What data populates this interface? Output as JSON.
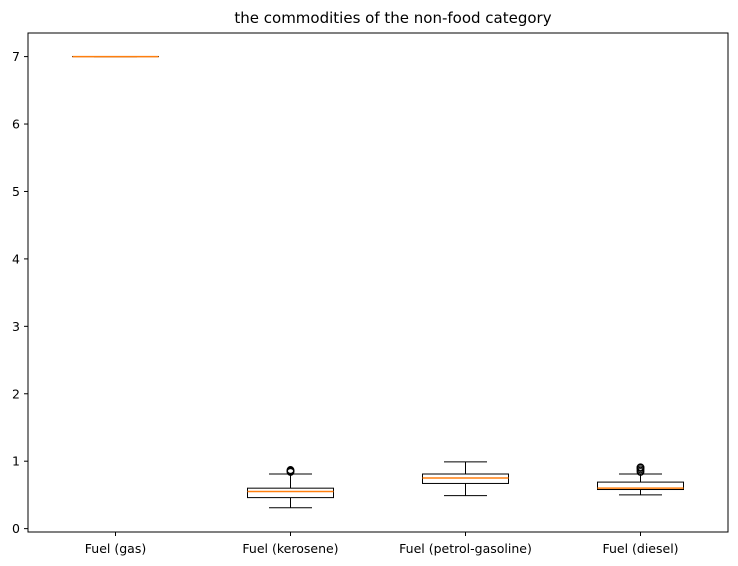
{
  "chart_data": {
    "type": "box",
    "title": "the  commodities of the non-food category",
    "xlabel": "",
    "ylabel": "",
    "ylim": [
      -0.05,
      7.35
    ],
    "yticks": [
      0,
      1,
      2,
      3,
      4,
      5,
      6,
      7
    ],
    "grid": false,
    "categories": [
      "Fuel (gas)",
      "Fuel (kerosene)",
      "Fuel (petrol-gasoline)",
      "Fuel (diesel)"
    ],
    "boxes": [
      {
        "category": "Fuel (gas)",
        "whisker_low": 7.0,
        "q1": 7.0,
        "median": 7.0,
        "q3": 7.0,
        "whisker_high": 7.0,
        "outliers": []
      },
      {
        "category": "Fuel (kerosene)",
        "whisker_low": 0.31,
        "q1": 0.46,
        "median": 0.55,
        "q3": 0.6,
        "whisker_high": 0.81,
        "outliers": [
          0.84,
          0.85,
          0.86,
          0.87
        ]
      },
      {
        "category": "Fuel (petrol-gasoline)",
        "whisker_low": 0.49,
        "q1": 0.67,
        "median": 0.75,
        "q3": 0.81,
        "whisker_high": 0.99,
        "outliers": []
      },
      {
        "category": "Fuel (diesel)",
        "whisker_low": 0.5,
        "q1": 0.58,
        "median": 0.6,
        "q3": 0.69,
        "whisker_high": 0.81,
        "outliers": [
          0.84,
          0.86,
          0.88,
          0.9,
          0.91
        ]
      }
    ],
    "colors": {
      "box": "#000000",
      "median": "#ff7f0e",
      "outlier": "#000000",
      "axes": "#000000"
    }
  }
}
